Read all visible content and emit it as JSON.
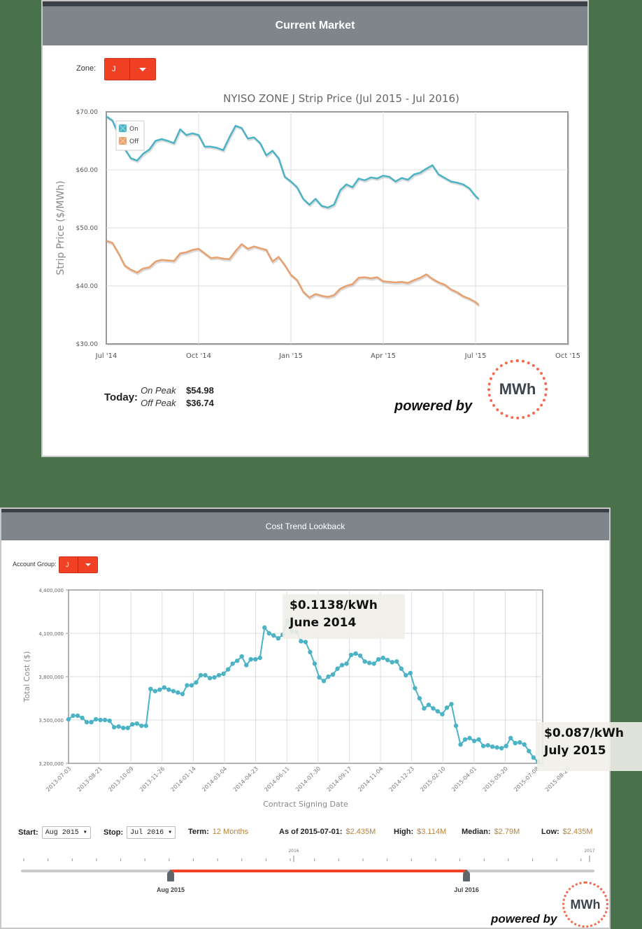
{
  "colors": {
    "background": "#48714C",
    "header": "#7f868b",
    "accent": "#f04124",
    "on": "#4bb3c4",
    "off": "#e8a06e",
    "gold": "#b8823a"
  },
  "current_market": {
    "title": "Current Market",
    "zone_label": "Zone:",
    "zone_value": "J",
    "chart_title": "NYISO ZONE J Strip Price (Jul 2015 - Jul 2016)",
    "ylabel": "Strip Price ($/MWh)",
    "legend": [
      "On",
      "Off"
    ],
    "today_label": "Today:",
    "on_peak_label": "On Peak",
    "on_peak_value": "$54.98",
    "off_peak_label": "Off Peak",
    "off_peak_value": "$36.74",
    "powered_by": "powered by",
    "logo_text": "MWh"
  },
  "cost_trend": {
    "title": "Cost Trend Lookback",
    "account_group_label": "Account Group:",
    "account_group_value": "J",
    "ylabel": "Total Cost ($)",
    "xlabel": "Contract Signing Date",
    "annotation_high": {
      "price": "$0.1138/kWh",
      "date": "June 2014"
    },
    "annotation_low": {
      "price": "$0.087/kWh",
      "date": "July 2015"
    },
    "start_label": "Start:",
    "start_value": "Aug 2015 ▾",
    "stop_label": "Stop:",
    "stop_value": "Jul 2016 ▾",
    "term_label": "Term:",
    "term_value": "12 Months",
    "asof_label": "As of 2015-07-01:",
    "asof_value": "$2.435M",
    "high_label": "High:",
    "high_value": "$3.114M",
    "median_label": "Median:",
    "median_value": "$2.79M",
    "low_label": "Low:",
    "low_value": "$2.435M",
    "slider": {
      "year_left": "2016",
      "year_right": "2017",
      "start_handle": "Aug 2015",
      "stop_handle": "Jul 2016"
    },
    "powered_by": "powered by",
    "logo_text": "MWh"
  },
  "chart_data": [
    {
      "type": "line",
      "title": "NYISO ZONE J Strip Price (Jul 2015 - Jul 2016)",
      "xlabel": "",
      "ylabel": "Strip Price ($/MWh)",
      "x_ticks": [
        "Jul '14",
        "Oct '14",
        "Jan '15",
        "Apr '15",
        "Jul '15",
        "Oct '15"
      ],
      "y_ticks": [
        "$30.00",
        "$40.00",
        "$50.00",
        "$60.00",
        "$70.00"
      ],
      "ylim": [
        30,
        70
      ],
      "xlim_months": [
        0,
        15
      ],
      "grid": true,
      "legend_position": "top-left",
      "series": [
        {
          "name": "On",
          "color": "#4bb3c4",
          "x": [
            0,
            0.2,
            0.4,
            0.6,
            0.8,
            1.0,
            1.2,
            1.4,
            1.6,
            1.8,
            2.0,
            2.2,
            2.4,
            2.6,
            2.8,
            3.0,
            3.2,
            3.4,
            3.6,
            3.8,
            4.0,
            4.2,
            4.4,
            4.6,
            4.8,
            5.0,
            5.2,
            5.4,
            5.6,
            5.8,
            6.0,
            6.2,
            6.4,
            6.6,
            6.8,
            7.0,
            7.2,
            7.4,
            7.6,
            7.8,
            8.0,
            8.2,
            8.4,
            8.6,
            8.8,
            9.0,
            9.2,
            9.4,
            9.6,
            9.8,
            10.0,
            10.2,
            10.4,
            10.6,
            10.8,
            11.0,
            11.2,
            11.4,
            11.6,
            11.8,
            12.0,
            12.1
          ],
          "values": [
            69.2,
            68.5,
            66.0,
            63.6,
            62.0,
            61.6,
            62.8,
            63.5,
            65.0,
            65.3,
            65.0,
            64.6,
            67.0,
            66.0,
            66.3,
            66.0,
            64.0,
            64.0,
            63.8,
            63.4,
            65.6,
            67.6,
            67.2,
            65.4,
            65.6,
            64.6,
            62.5,
            63.3,
            62.0,
            58.8,
            58.0,
            57.0,
            55.0,
            54.0,
            55.0,
            53.8,
            53.5,
            54.0,
            56.5,
            57.5,
            57.0,
            58.5,
            58.2,
            58.7,
            58.5,
            59.0,
            58.8,
            58.0,
            58.6,
            58.3,
            59.2,
            59.5,
            60.2,
            60.8,
            59.2,
            58.6,
            58.0,
            57.8,
            57.5,
            56.8,
            55.5,
            54.98
          ]
        },
        {
          "name": "Off",
          "color": "#e8a06e",
          "x": [
            0,
            0.2,
            0.4,
            0.6,
            0.8,
            1.0,
            1.2,
            1.4,
            1.6,
            1.8,
            2.0,
            2.2,
            2.4,
            2.6,
            2.8,
            3.0,
            3.2,
            3.4,
            3.6,
            3.8,
            4.0,
            4.2,
            4.4,
            4.6,
            4.8,
            5.0,
            5.2,
            5.4,
            5.6,
            5.8,
            6.0,
            6.2,
            6.4,
            6.6,
            6.8,
            7.0,
            7.2,
            7.4,
            7.6,
            7.8,
            8.0,
            8.2,
            8.4,
            8.6,
            8.8,
            9.0,
            9.2,
            9.4,
            9.6,
            9.8,
            10.0,
            10.2,
            10.4,
            10.6,
            10.8,
            11.0,
            11.2,
            11.4,
            11.6,
            11.8,
            12.0,
            12.1
          ],
          "values": [
            47.8,
            47.4,
            45.6,
            43.5,
            42.8,
            42.3,
            43.0,
            43.2,
            44.2,
            44.5,
            44.4,
            44.3,
            45.6,
            45.8,
            46.2,
            46.4,
            45.6,
            44.8,
            44.9,
            44.7,
            44.6,
            46.0,
            47.2,
            46.4,
            46.8,
            46.5,
            46.2,
            44.2,
            45.0,
            43.6,
            41.9,
            41.0,
            39.0,
            38.0,
            38.6,
            38.3,
            38.1,
            38.4,
            39.5,
            40.0,
            40.3,
            41.4,
            41.5,
            41.3,
            41.5,
            40.8,
            40.7,
            40.6,
            40.7,
            40.5,
            41.0,
            41.4,
            42.0,
            41.2,
            40.6,
            40.2,
            39.4,
            38.9,
            38.2,
            37.8,
            37.2,
            36.74
          ]
        }
      ]
    },
    {
      "type": "line",
      "title": "",
      "xlabel": "Contract Signing Date",
      "ylabel": "Total Cost ($)",
      "x_ticks": [
        "2013-07-03",
        "2013-08-21",
        "2013-10-09",
        "2013-11-26",
        "2014-01-14",
        "2014-03-04",
        "2014-04-23",
        "2014-06-11",
        "2014-07-30",
        "2014-09-17",
        "2014-11-04",
        "2014-12-23",
        "2015-02-10",
        "2015-04-01",
        "2015-05-20",
        "2015-07-08",
        "2015-08-26"
      ],
      "y_ticks": [
        "3,200,000",
        "3,500,000",
        "3,800,000",
        "4,100,000",
        "4,400,000"
      ],
      "ylim": [
        3200000,
        4400000
      ],
      "grid": true,
      "series": [
        {
          "name": "Total Cost",
          "color": "#4bb3c4",
          "values": [
            3505000,
            3530000,
            3530000,
            3515000,
            3485000,
            3485000,
            3505000,
            3500000,
            3500000,
            3495000,
            3450000,
            3455000,
            3445000,
            3445000,
            3470000,
            3475000,
            3460000,
            3460000,
            3715000,
            3700000,
            3710000,
            3725000,
            3710000,
            3700000,
            3690000,
            3680000,
            3740000,
            3740000,
            3760000,
            3810000,
            3810000,
            3790000,
            3795000,
            3810000,
            3820000,
            3850000,
            3890000,
            3910000,
            3940000,
            3880000,
            3920000,
            3920000,
            3930000,
            4140000,
            4100000,
            4085000,
            4065000,
            4090000,
            4185000,
            4115000,
            4110000,
            4045000,
            4040000,
            3970000,
            3890000,
            3795000,
            3770000,
            3800000,
            3815000,
            3855000,
            3880000,
            3890000,
            3950000,
            3960000,
            3945000,
            3905000,
            3895000,
            3890000,
            3920000,
            3930000,
            3915000,
            3900000,
            3905000,
            3855000,
            3810000,
            3825000,
            3720000,
            3650000,
            3580000,
            3605000,
            3580000,
            3560000,
            3540000,
            3585000,
            3610000,
            3460000,
            3330000,
            3365000,
            3375000,
            3355000,
            3365000,
            3320000,
            3325000,
            3315000,
            3310000,
            3305000,
            3320000,
            3375000,
            3340000,
            3345000,
            3330000,
            3285000,
            3240000,
            3210000
          ]
        }
      ]
    }
  ]
}
